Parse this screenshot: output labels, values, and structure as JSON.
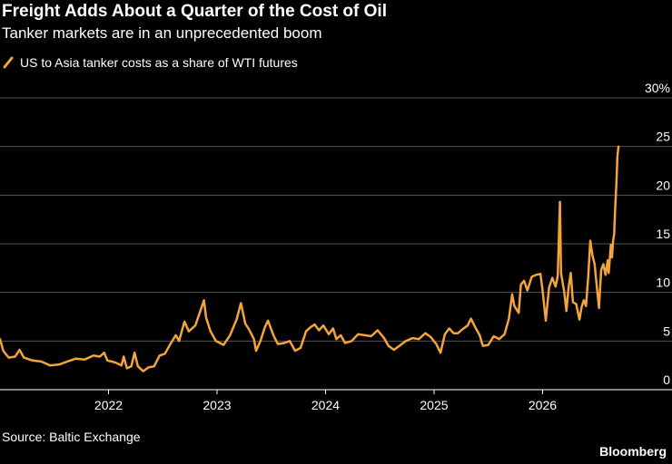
{
  "title": "Freight Adds About a Quarter of the Cost of Oil",
  "subtitle": "Tanker markets are in an unprecedented boom",
  "source": "Source: Baltic Exchange",
  "brand": "Bloomberg",
  "colors": {
    "background": "#000000",
    "series": "#f5a33b",
    "grid": "#555555",
    "axis": "#ffffff"
  },
  "chart_data": {
    "type": "line",
    "series": [
      {
        "name": "US to Asia tanker costs as a share of WTI futures",
        "color": "#f5a33b",
        "points": [
          [
            2021.0,
            5.2
          ],
          [
            2021.03,
            4.0
          ],
          [
            2021.08,
            3.3
          ],
          [
            2021.14,
            3.4
          ],
          [
            2021.18,
            4.1
          ],
          [
            2021.22,
            3.3
          ],
          [
            2021.3,
            3.0
          ],
          [
            2021.38,
            2.9
          ],
          [
            2021.46,
            2.5
          ],
          [
            2021.55,
            2.6
          ],
          [
            2021.62,
            2.9
          ],
          [
            2021.7,
            3.2
          ],
          [
            2021.78,
            3.1
          ],
          [
            2021.86,
            3.5
          ],
          [
            2021.92,
            3.4
          ],
          [
            2021.96,
            3.8
          ],
          [
            2021.99,
            3.0
          ],
          [
            2022.06,
            2.8
          ],
          [
            2022.12,
            2.5
          ],
          [
            2022.14,
            3.4
          ],
          [
            2022.17,
            2.2
          ],
          [
            2022.21,
            2.4
          ],
          [
            2022.24,
            3.8
          ],
          [
            2022.27,
            2.4
          ],
          [
            2022.32,
            1.9
          ],
          [
            2022.37,
            2.3
          ],
          [
            2022.42,
            2.4
          ],
          [
            2022.47,
            3.5
          ],
          [
            2022.52,
            3.7
          ],
          [
            2022.57,
            4.7
          ],
          [
            2022.62,
            5.6
          ],
          [
            2022.65,
            5.0
          ],
          [
            2022.7,
            7.0
          ],
          [
            2022.74,
            6.0
          ],
          [
            2022.8,
            6.6
          ],
          [
            2022.84,
            7.9
          ],
          [
            2022.88,
            9.2
          ],
          [
            2022.9,
            7.4
          ],
          [
            2022.94,
            6.0
          ],
          [
            2022.99,
            5.0
          ],
          [
            2023.06,
            4.6
          ],
          [
            2023.12,
            5.6
          ],
          [
            2023.18,
            7.2
          ],
          [
            2023.22,
            8.9
          ],
          [
            2023.26,
            6.8
          ],
          [
            2023.3,
            6.1
          ],
          [
            2023.34,
            5.2
          ],
          [
            2023.36,
            4.0
          ],
          [
            2023.4,
            5.0
          ],
          [
            2023.44,
            6.4
          ],
          [
            2023.47,
            7.1
          ],
          [
            2023.52,
            5.6
          ],
          [
            2023.56,
            4.7
          ],
          [
            2023.62,
            4.8
          ],
          [
            2023.67,
            5.0
          ],
          [
            2023.72,
            4.0
          ],
          [
            2023.77,
            4.3
          ],
          [
            2023.82,
            6.0
          ],
          [
            2023.86,
            6.4
          ],
          [
            2023.9,
            6.7
          ],
          [
            2023.94,
            6.1
          ],
          [
            2023.98,
            6.6
          ],
          [
            2024.03,
            5.7
          ],
          [
            2024.07,
            6.3
          ],
          [
            2024.1,
            5.2
          ],
          [
            2024.14,
            5.6
          ],
          [
            2024.18,
            4.8
          ],
          [
            2024.24,
            5.0
          ],
          [
            2024.3,
            5.7
          ],
          [
            2024.36,
            5.6
          ],
          [
            2024.42,
            5.5
          ],
          [
            2024.48,
            6.1
          ],
          [
            2024.54,
            5.3
          ],
          [
            2024.58,
            4.5
          ],
          [
            2024.63,
            4.1
          ],
          [
            2024.68,
            4.5
          ],
          [
            2024.74,
            5.0
          ],
          [
            2024.8,
            5.3
          ],
          [
            2024.86,
            5.2
          ],
          [
            2024.92,
            5.8
          ],
          [
            2024.97,
            5.4
          ],
          [
            2025.02,
            4.7
          ],
          [
            2025.06,
            3.8
          ],
          [
            2025.1,
            5.7
          ],
          [
            2025.14,
            6.3
          ],
          [
            2025.18,
            5.8
          ],
          [
            2025.22,
            5.8
          ],
          [
            2025.26,
            6.2
          ],
          [
            2025.31,
            6.6
          ],
          [
            2025.34,
            7.3
          ],
          [
            2025.38,
            6.4
          ],
          [
            2025.42,
            5.6
          ],
          [
            2025.45,
            4.5
          ],
          [
            2025.5,
            4.6
          ],
          [
            2025.55,
            5.5
          ],
          [
            2025.6,
            5.2
          ],
          [
            2025.65,
            5.7
          ],
          [
            2025.69,
            7.3
          ],
          [
            2025.72,
            9.8
          ],
          [
            2025.74,
            8.6
          ],
          [
            2025.78,
            7.9
          ],
          [
            2025.8,
            10.8
          ],
          [
            2025.83,
            11.2
          ],
          [
            2025.86,
            10.2
          ],
          [
            2025.9,
            11.6
          ],
          [
            2025.94,
            11.8
          ],
          [
            2025.98,
            11.9
          ],
          [
            2026.0,
            10.2
          ],
          [
            2026.03,
            7.1
          ],
          [
            2026.06,
            10.5
          ],
          [
            2026.09,
            11.5
          ],
          [
            2026.12,
            10.6
          ],
          [
            2026.14,
            11.7
          ],
          [
            2026.16,
            19.3
          ],
          [
            2026.17,
            12.0
          ],
          [
            2026.2,
            10.0
          ],
          [
            2026.22,
            8.1
          ],
          [
            2026.24,
            10.5
          ],
          [
            2026.26,
            12.0
          ],
          [
            2026.28,
            9.0
          ],
          [
            2026.31,
            8.8
          ],
          [
            2026.34,
            7.2
          ],
          [
            2026.36,
            8.5
          ],
          [
            2026.38,
            9.2
          ],
          [
            2026.4,
            8.6
          ],
          [
            2026.42,
            11.4
          ],
          [
            2026.44,
            15.3
          ],
          [
            2026.46,
            13.8
          ],
          [
            2026.48,
            12.9
          ],
          [
            2026.5,
            10.6
          ],
          [
            2026.52,
            8.4
          ],
          [
            2026.54,
            12.3
          ],
          [
            2026.56,
            12.9
          ],
          [
            2026.58,
            11.8
          ],
          [
            2026.6,
            13.3
          ],
          [
            2026.61,
            12.0
          ],
          [
            2026.63,
            14.9
          ],
          [
            2026.64,
            13.6
          ],
          [
            2026.65,
            15.3
          ],
          [
            2026.66,
            16.0
          ],
          [
            2026.67,
            18.8
          ],
          [
            2026.68,
            21.0
          ],
          [
            2026.69,
            24.0
          ],
          [
            2026.7,
            25.0
          ]
        ]
      }
    ],
    "x_ticks": [
      2022,
      2023,
      2024,
      2025,
      2026
    ],
    "x_tick_labels": [
      "2022",
      "2023",
      "2024",
      "2025",
      "2026"
    ],
    "xlim": [
      2021.0,
      2026.9
    ],
    "y_ticks": [
      0,
      5,
      10,
      15,
      20,
      25,
      30
    ],
    "y_tick_labels": [
      "0",
      "5",
      "10",
      "15",
      "20",
      "25",
      "30%"
    ],
    "ylim": [
      0,
      30
    ],
    "grid": "horizontal",
    "legend_position": "top-left"
  }
}
